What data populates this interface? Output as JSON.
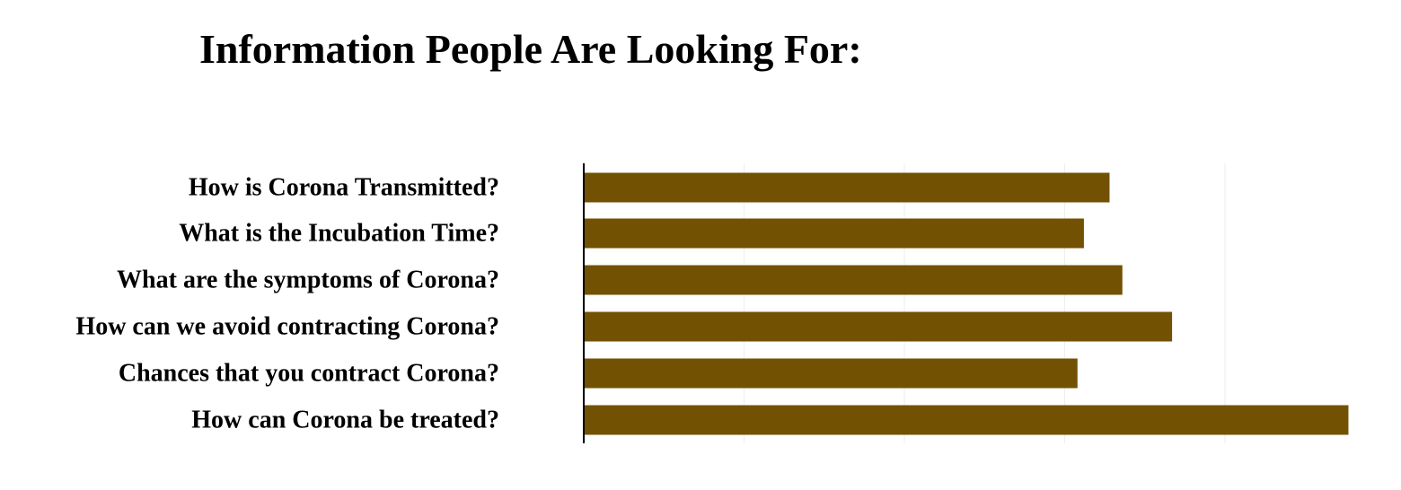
{
  "chart_data": {
    "type": "bar",
    "orientation": "horizontal",
    "title": "Information People Are Looking For:",
    "categories": [
      "How is Corona Transmitted?",
      "What is the Incubation Time?",
      "What are the symptoms of Corona?",
      "How can we avoid contracting Corona?",
      "Chances that you contract Corona?",
      "How can Corona be treated?"
    ],
    "values": [
      3.28,
      3.12,
      3.36,
      3.67,
      3.08,
      4.77
    ],
    "xlim": [
      0,
      5
    ],
    "grid": true,
    "x_tick_labels_shown": false,
    "bar_color": "#735103",
    "grid_color": "#eeeeee",
    "axis_color": "#000000"
  }
}
